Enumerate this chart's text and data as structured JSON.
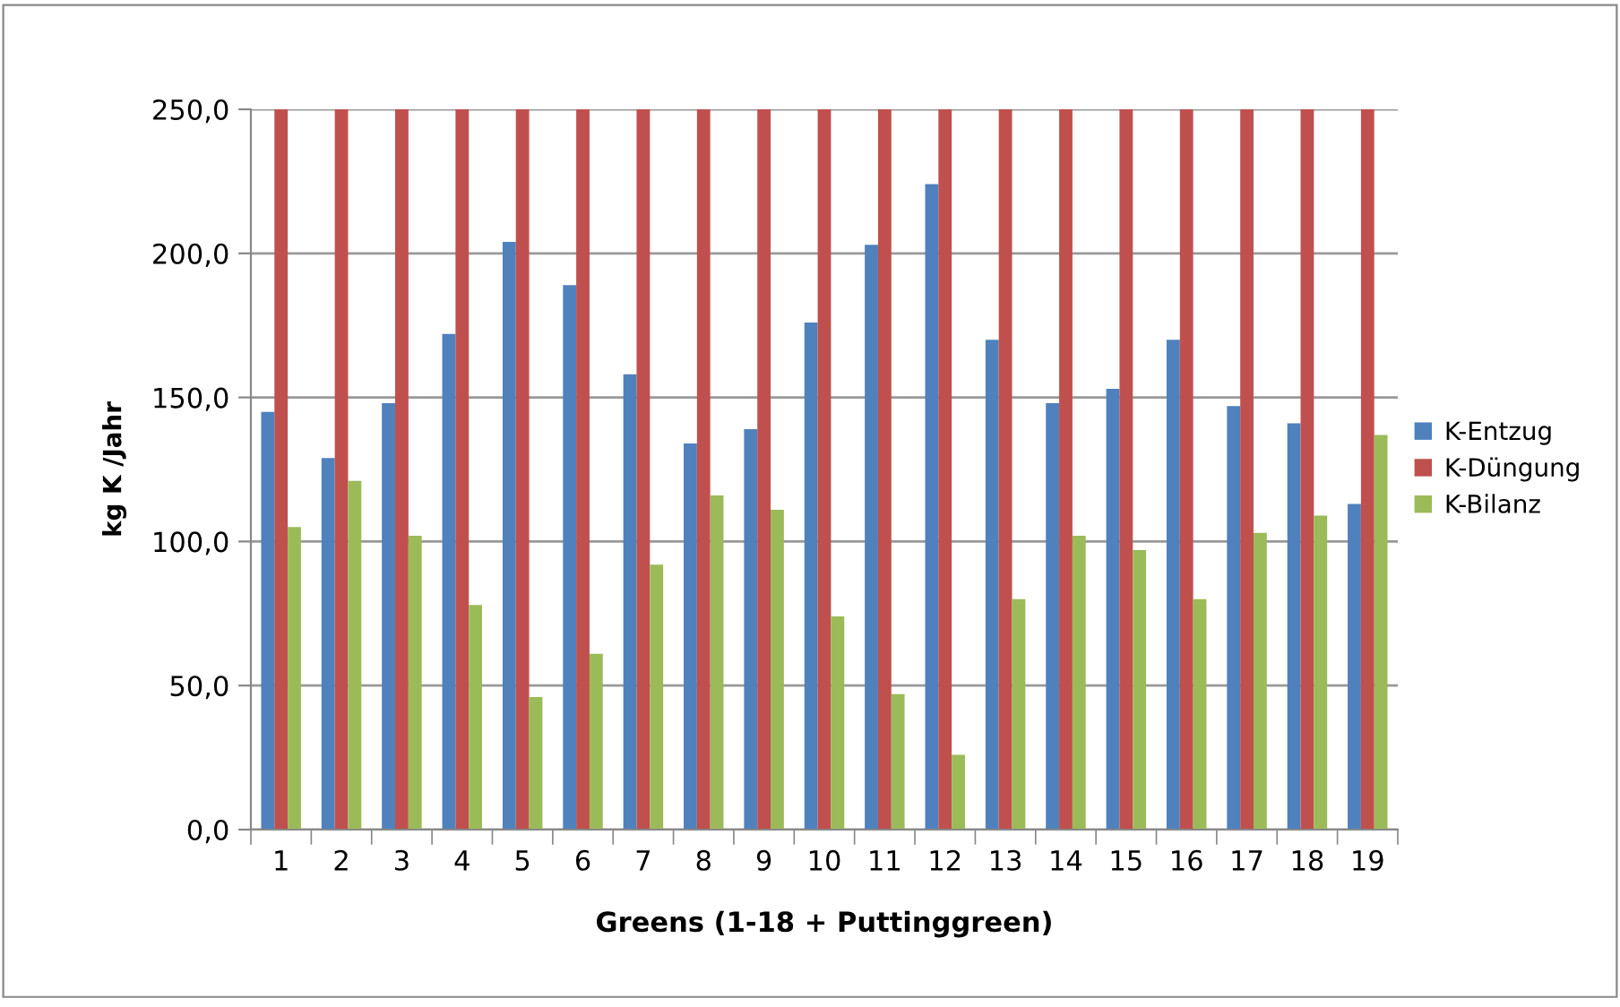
{
  "chart_data": {
    "type": "bar",
    "xlabel": "Greens (1-18 + Puttinggreen)",
    "ylabel": "kg K /Jahr",
    "categories": [
      "1",
      "2",
      "3",
      "4",
      "5",
      "6",
      "7",
      "8",
      "9",
      "10",
      "11",
      "12",
      "13",
      "14",
      "15",
      "16",
      "17",
      "18",
      "19"
    ],
    "series": [
      {
        "name": "K-Entzug",
        "color": "#4f81bd",
        "values": [
          145,
          129,
          148,
          172,
          204,
          189,
          158,
          134,
          139,
          176,
          203,
          224,
          170,
          148,
          153,
          170,
          147,
          141,
          113
        ]
      },
      {
        "name": "K-Düngung",
        "color": "#c0504d",
        "values": [
          250,
          250,
          250,
          250,
          250,
          250,
          250,
          250,
          250,
          250,
          250,
          250,
          250,
          250,
          250,
          250,
          250,
          250,
          250
        ]
      },
      {
        "name": "K-Bilanz",
        "color": "#9bbb59",
        "values": [
          105,
          121,
          102,
          78,
          46,
          61,
          92,
          116,
          111,
          74,
          47,
          26,
          80,
          102,
          97,
          80,
          103,
          109,
          137
        ]
      }
    ],
    "ylim": [
      0,
      250
    ],
    "yticks": [
      {
        "value": 0,
        "label": "0,0"
      },
      {
        "value": 50,
        "label": "50,0"
      },
      {
        "value": 100,
        "label": "100,0"
      },
      {
        "value": 150,
        "label": "150,0"
      },
      {
        "value": 200,
        "label": "200,0"
      },
      {
        "value": 250,
        "label": "250,0"
      }
    ],
    "grid": "y",
    "legend": "right"
  }
}
